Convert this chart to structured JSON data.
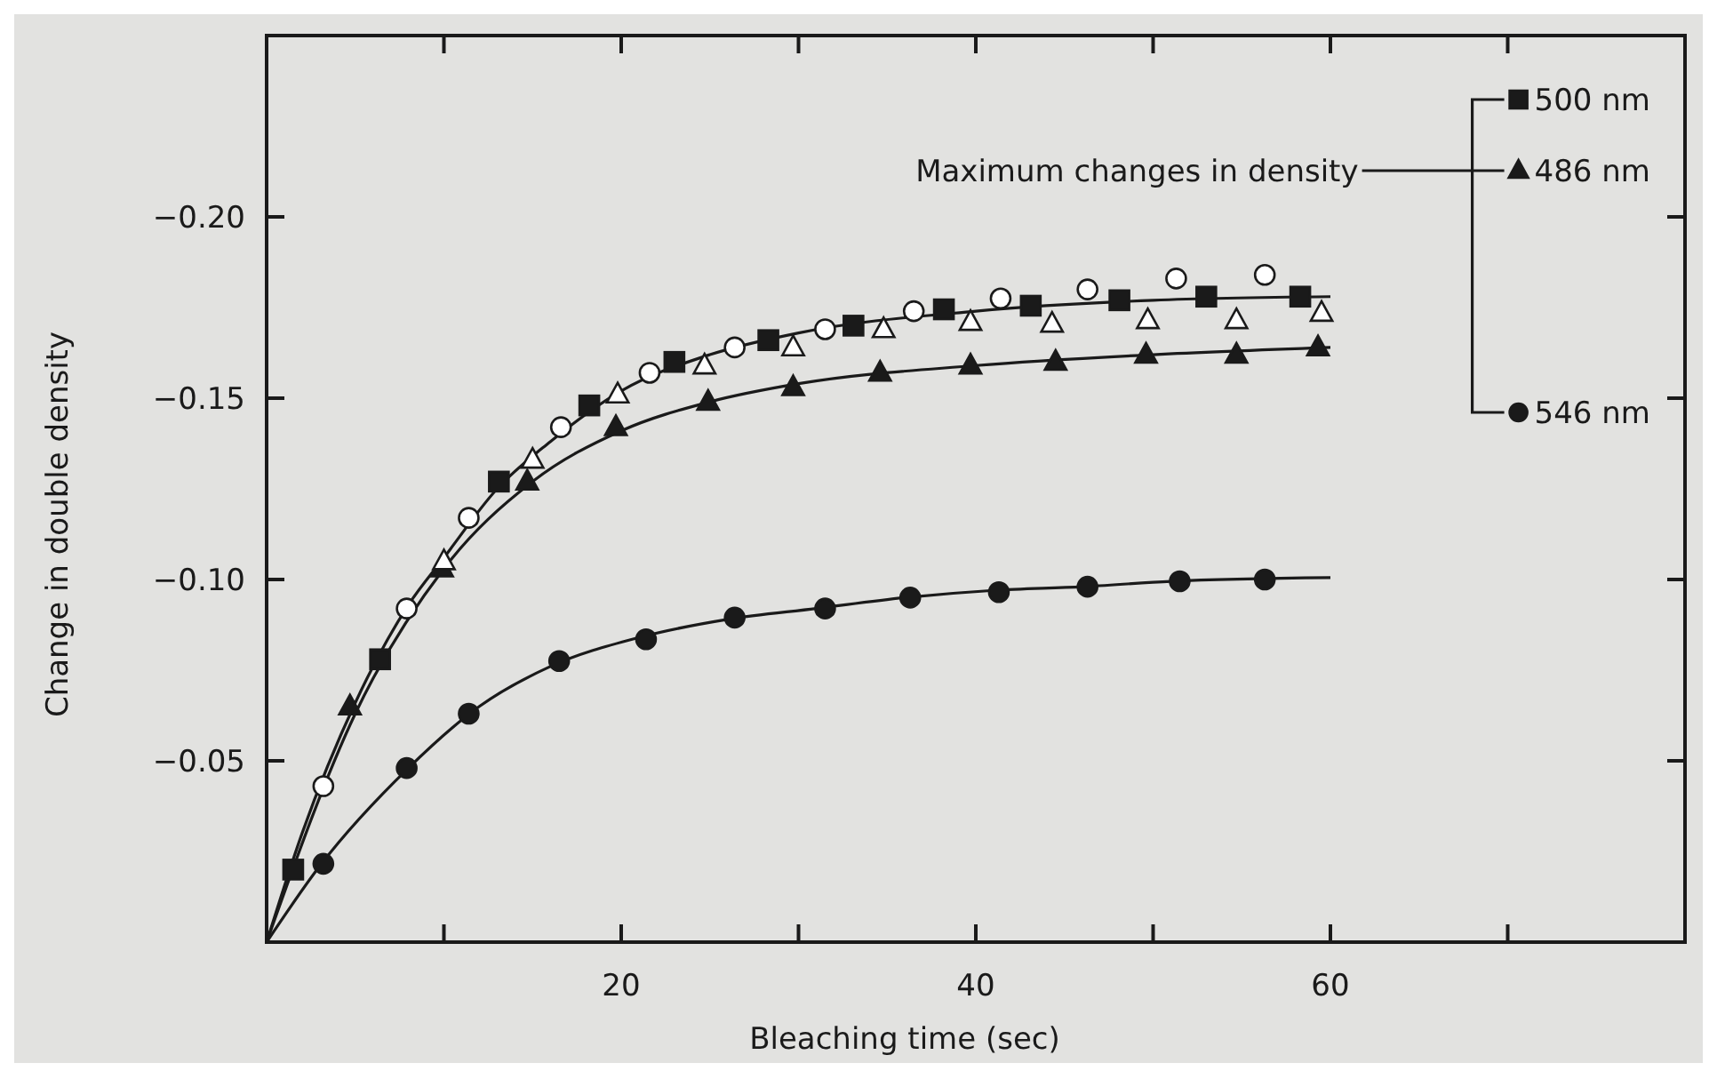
{
  "chart_data": {
    "type": "scatter",
    "xlabel": "Bleaching time (sec)",
    "ylabel": "Change in double density",
    "annotations": [
      "Maximum changes in density"
    ],
    "xlim": [
      0,
      80
    ],
    "ylim": [
      0,
      -0.25
    ],
    "xticks": [
      {
        "value": 10,
        "label": null
      },
      20,
      {
        "value": 30,
        "label": null
      },
      40,
      {
        "value": 50,
        "label": null
      },
      60,
      {
        "value": 70,
        "label": null
      }
    ],
    "yticks": [
      {
        "value": -0.05,
        "label": "−0.05"
      },
      {
        "value": -0.1,
        "label": "−0.10"
      },
      {
        "value": -0.15,
        "label": "−0.15"
      },
      {
        "value": -0.2,
        "label": "−0.20"
      }
    ],
    "grid": false,
    "legend": "top right",
    "series": [
      {
        "type": "line",
        "marker": "none",
        "color": "#1a1a1a",
        "x": [
          0,
          2,
          5,
          8,
          10,
          13,
          16,
          20,
          25,
          30,
          40,
          50,
          60
        ],
        "values": [
          0,
          -0.03,
          -0.066,
          -0.093,
          -0.106,
          -0.125,
          -0.138,
          -0.152,
          -0.162,
          -0.168,
          -0.174,
          -0.177,
          -0.178
        ]
      },
      {
        "type": "line",
        "marker": "none",
        "color": "#1a1a1a",
        "x": [
          0,
          5,
          10,
          15,
          20,
          25,
          30,
          40,
          50,
          60
        ],
        "values": [
          0,
          -0.063,
          -0.103,
          -0.127,
          -0.141,
          -0.149,
          -0.154,
          -0.159,
          -0.162,
          -0.164
        ]
      },
      {
        "type": "line",
        "marker": "none",
        "color": "#1a1a1a",
        "x": [
          0,
          3,
          8,
          12,
          16,
          21,
          26,
          31,
          36,
          41,
          46,
          51,
          60
        ],
        "values": [
          0,
          -0.021,
          -0.048,
          -0.065,
          -0.076,
          -0.084,
          -0.089,
          -0.092,
          -0.095,
          -0.097,
          -0.098,
          -0.0995,
          -0.1005
        ]
      },
      {
        "name": "500 nm",
        "marker": "square",
        "color": "#1a1a1a",
        "x": [
          1.5,
          6.4,
          13.1,
          18.2,
          23.0,
          28.3,
          33.1,
          38.2,
          43.1,
          48.1,
          53.0,
          58.3
        ],
        "values": [
          -0.02,
          -0.078,
          -0.127,
          -0.148,
          -0.16,
          -0.166,
          -0.17,
          -0.1745,
          -0.1755,
          -0.177,
          -0.178,
          -0.178
        ]
      },
      {
        "name": "486 nm",
        "marker": "triangle",
        "color": "#1a1a1a",
        "x": [
          4.7,
          9.9,
          14.7,
          19.7,
          24.9,
          29.7,
          34.6,
          39.7,
          44.5,
          49.6,
          54.7,
          59.3
        ],
        "values": [
          -0.065,
          -0.103,
          -0.127,
          -0.142,
          -0.149,
          -0.153,
          -0.157,
          -0.159,
          -0.16,
          -0.162,
          -0.162,
          -0.164
        ]
      },
      {
        "name": "546 nm",
        "marker": "circle",
        "color": "#1a1a1a",
        "x": [
          3.2,
          7.9,
          11.4,
          16.5,
          21.4,
          26.4,
          31.5,
          36.3,
          41.3,
          46.3,
          51.5,
          56.3
        ],
        "values": [
          -0.0216,
          -0.048,
          -0.063,
          -0.0775,
          -0.0835,
          -0.0895,
          -0.092,
          -0.095,
          -0.0965,
          -0.098,
          -0.0995,
          -0.1
        ]
      },
      {
        "marker": "circle",
        "color": "#ffffff",
        "x": [
          3.2,
          7.9,
          11.4,
          16.6,
          21.6,
          26.4,
          31.5,
          36.5,
          41.4,
          46.3,
          51.3,
          56.3
        ],
        "values": [
          -0.043,
          -0.092,
          -0.117,
          -0.142,
          -0.157,
          -0.164,
          -0.169,
          -0.174,
          -0.1775,
          -0.18,
          -0.183,
          -0.184
        ]
      },
      {
        "marker": "triangle",
        "color": "#ffffff",
        "x": [
          10,
          15.0,
          19.8,
          24.7,
          29.7,
          34.8,
          39.7,
          44.3,
          49.7,
          54.7,
          59.5
        ],
        "values": [
          -0.105,
          -0.133,
          -0.151,
          -0.159,
          -0.164,
          -0.169,
          -0.171,
          -0.1705,
          -0.1715,
          -0.1715,
          -0.1735
        ]
      }
    ]
  }
}
